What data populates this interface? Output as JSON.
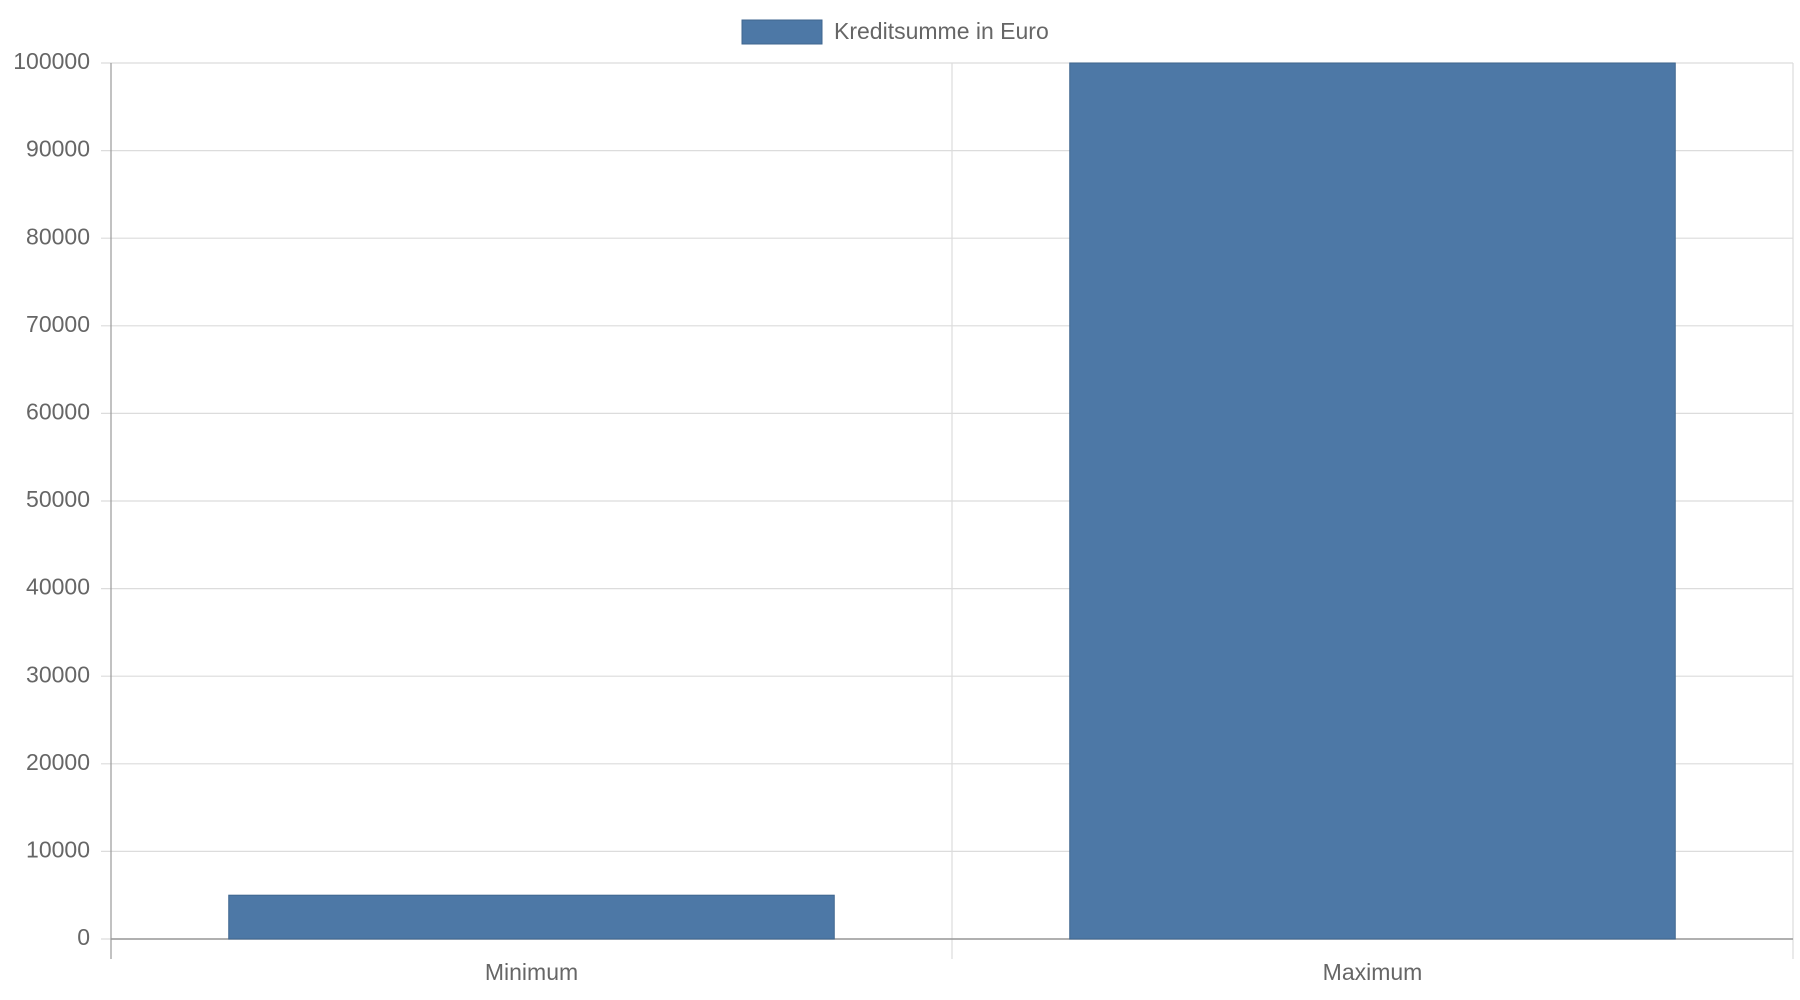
{
  "chart_data": {
    "type": "bar",
    "categories": [
      "Minimum",
      "Maximum"
    ],
    "series": [
      {
        "name": "Kreditsumme in Euro",
        "color": "#4d78a6",
        "values": [
          5000,
          100000
        ]
      }
    ],
    "ylim": [
      0,
      100000
    ],
    "yticks": [
      0,
      10000,
      20000,
      30000,
      40000,
      50000,
      60000,
      70000,
      80000,
      90000,
      100000
    ],
    "grid": true,
    "legend": "top"
  }
}
